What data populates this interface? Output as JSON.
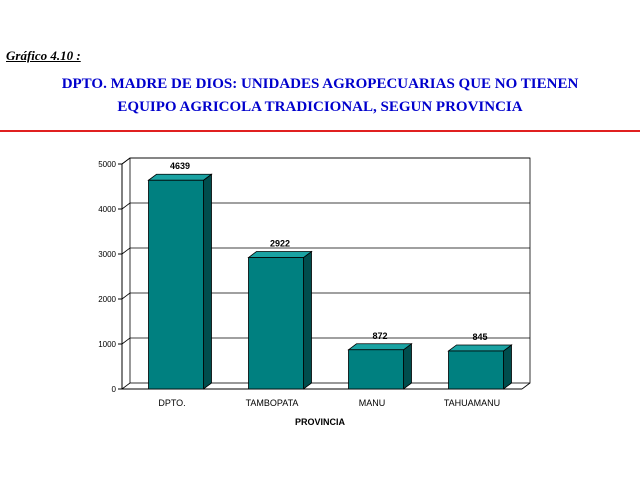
{
  "figure_label": "Gráfico 4.10 :",
  "title_line1": "DPTO. MADRE DE DIOS: UNIDADES AGROPECUARIAS QUE NO TIENEN",
  "title_line2": "EQUIPO AGRICOLA TRADICIONAL, SEGUN PROVINCIA",
  "colors": {
    "title": "#0000cc",
    "rule": "#e02020",
    "bar_front": "#008080",
    "bar_top": "#1aa3a3",
    "bar_side": "#004d4d"
  },
  "chart_data": {
    "type": "bar",
    "categories": [
      "DPTO.",
      "TAMBOPATA",
      "MANU",
      "TAHUAMANU"
    ],
    "values": [
      4639,
      2922,
      872,
      845
    ],
    "data_labels": [
      "4639",
      "2922",
      "872",
      "845"
    ],
    "xlabel": "PROVINCIA",
    "ylabel": "",
    "ylim": [
      0,
      5000
    ],
    "yticks": [
      0,
      1000,
      2000,
      3000,
      4000,
      5000
    ],
    "grid": true,
    "legend": "none",
    "style": "3d"
  }
}
